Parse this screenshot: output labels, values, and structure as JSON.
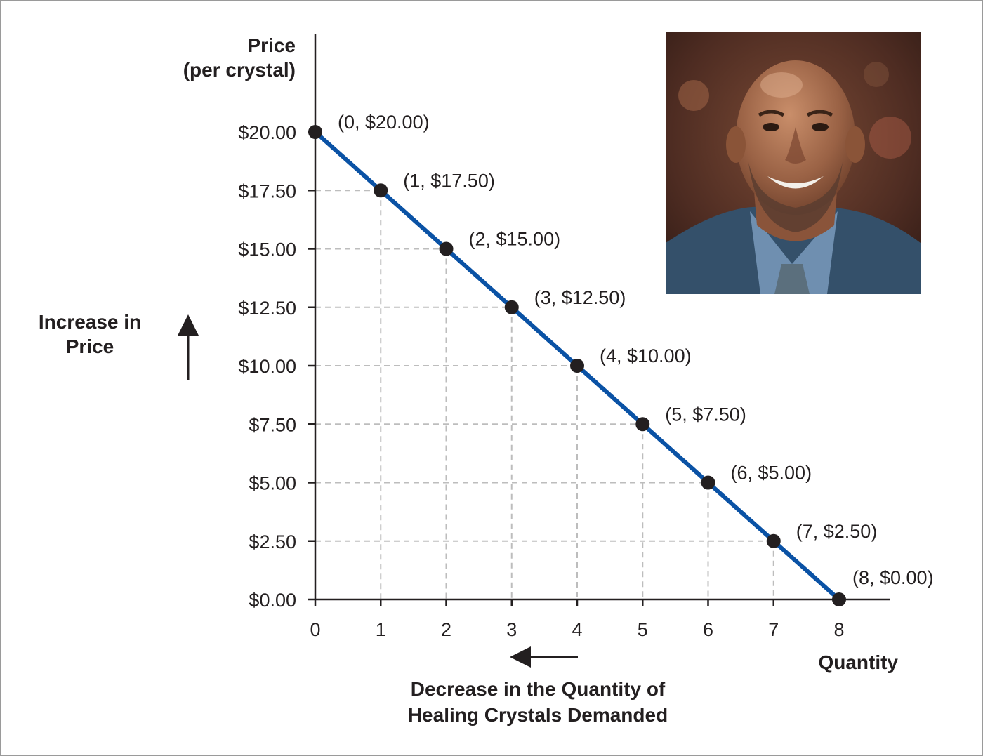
{
  "chart_data": {
    "type": "line",
    "x": [
      0,
      1,
      2,
      3,
      4,
      5,
      6,
      7,
      8
    ],
    "y": [
      20.0,
      17.5,
      15.0,
      12.5,
      10.0,
      7.5,
      5.0,
      2.5,
      0.0
    ],
    "xlim": [
      0,
      8
    ],
    "ylim": [
      0,
      20
    ],
    "ylabel_lines": [
      "Price",
      "(per crystal)"
    ],
    "xlabel": "Quantity",
    "x_ticks": [
      "0",
      "1",
      "2",
      "3",
      "4",
      "5",
      "6",
      "7",
      "8"
    ],
    "y_ticks": [
      "$0.00",
      "$2.50",
      "$5.00",
      "$7.50",
      "$10.00",
      "$12.50",
      "$15.00",
      "$17.50",
      "$20.00"
    ],
    "point_labels": [
      "(0, $20.00)",
      "(1, $17.50)",
      "(2, $15.00)",
      "(3, $12.50)",
      "(4, $10.00)",
      "(5, $7.50)",
      "(6, $5.00)",
      "(7, $2.50)",
      "(8, $0.00)"
    ],
    "side_note_lines": [
      "Increase in",
      "Price"
    ],
    "bottom_note_lines": [
      "Decrease in the Quantity of",
      "Healing Crystals Demanded"
    ],
    "line_color": "#0a52a5",
    "marker_color": "#231f20",
    "grid": "dashed guide lines from each point to both axes",
    "grid_color": "#bdbdbd"
  },
  "photo": {
    "description_icon": "person-photo"
  }
}
